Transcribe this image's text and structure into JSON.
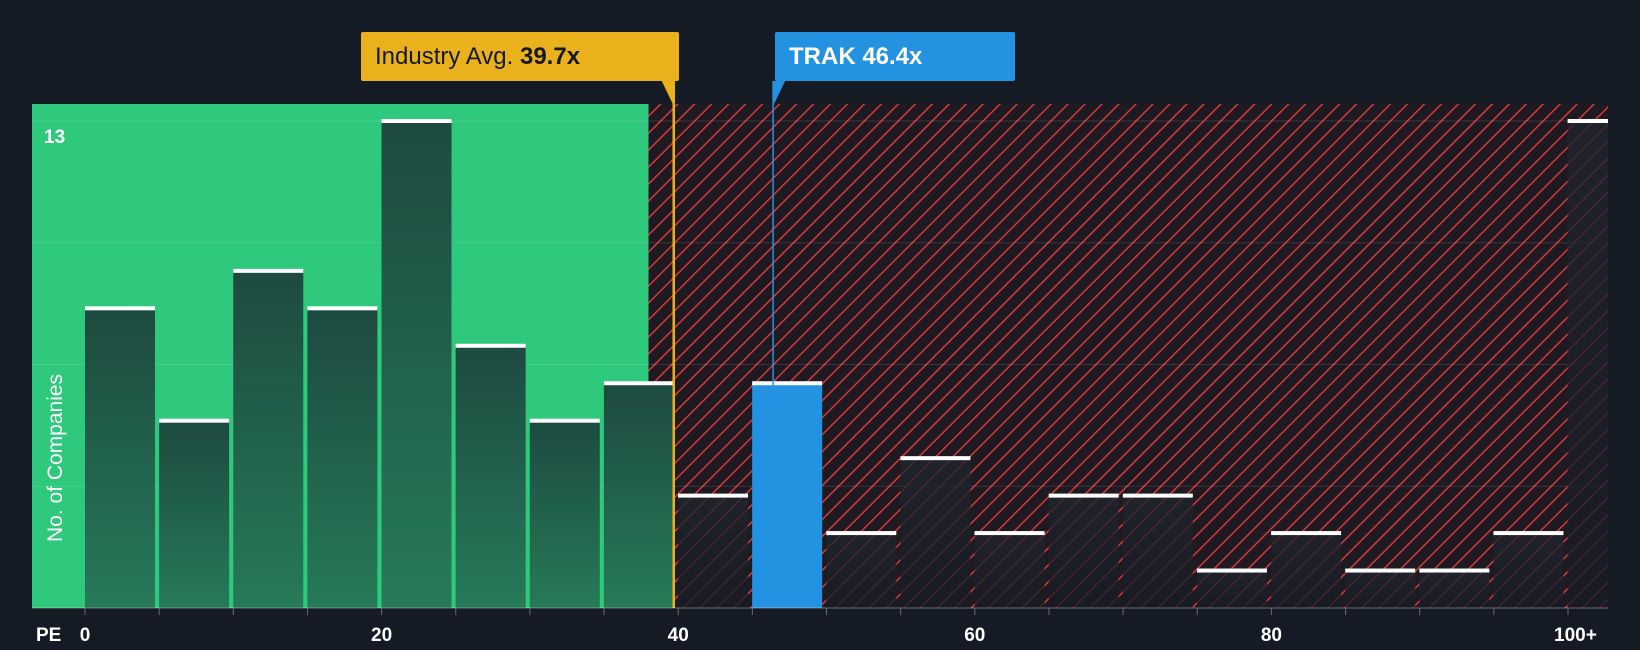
{
  "chart_data": {
    "type": "bar",
    "xlabel": "PE",
    "ylabel": "No. of Companies",
    "ymax_label": "13",
    "ylim": [
      0,
      13
    ],
    "x_ticks": [
      "0",
      "20",
      "40",
      "60",
      "80",
      "100+"
    ],
    "bins": [
      {
        "range": "0-5",
        "value": 8
      },
      {
        "range": "5-10",
        "value": 5
      },
      {
        "range": "10-15",
        "value": 9
      },
      {
        "range": "15-20",
        "value": 8
      },
      {
        "range": "20-25",
        "value": 13
      },
      {
        "range": "25-30",
        "value": 7
      },
      {
        "range": "30-35",
        "value": 5
      },
      {
        "range": "35-40",
        "value": 6
      },
      {
        "range": "40-45",
        "value": 3
      },
      {
        "range": "45-50",
        "value": 6
      },
      {
        "range": "50-55",
        "value": 2
      },
      {
        "range": "55-60",
        "value": 4
      },
      {
        "range": "60-65",
        "value": 2
      },
      {
        "range": "65-70",
        "value": 3
      },
      {
        "range": "70-75",
        "value": 3
      },
      {
        "range": "75-80",
        "value": 1
      },
      {
        "range": "80-85",
        "value": 2
      },
      {
        "range": "85-90",
        "value": 1
      },
      {
        "range": "90-95",
        "value": 1
      },
      {
        "range": "95-100",
        "value": 2
      },
      {
        "range": "100+",
        "value": 13
      }
    ],
    "highlight_bin": "45-50",
    "fair_zone_end": 38,
    "industry": {
      "label": "Industry Avg.",
      "value": 39.7,
      "display": "39.7x"
    },
    "company": {
      "label": "TRAK",
      "value": 46.4,
      "display": "46.4x"
    },
    "colors": {
      "background": "#151b24",
      "green_zone": "#2ec97c",
      "green_bar_top": "#1d4a40",
      "green_bar_bottom": "#267a58",
      "red_hatch": "#d33b3b",
      "dark_bar": "#1b2230",
      "highlight_bar": "#2393e1",
      "industry_line": "#ebb11c",
      "company_line": "#2393e1",
      "white": "#ffffff"
    }
  }
}
